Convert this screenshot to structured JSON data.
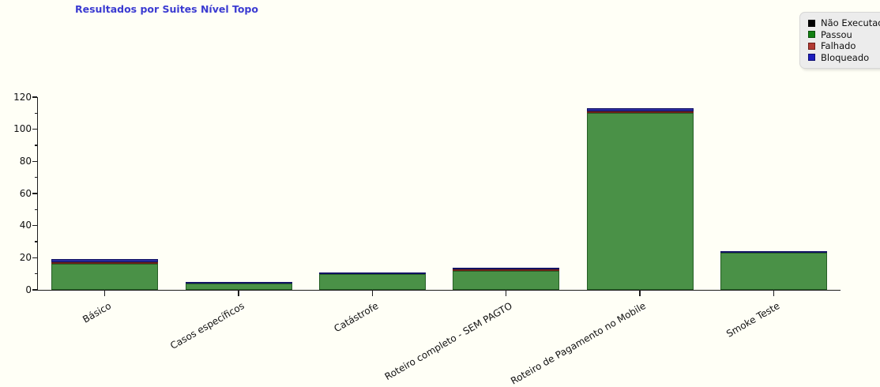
{
  "title": {
    "text": "Resultados por Suites Nível Topo",
    "color": "#3b3bd1"
  },
  "colors": {
    "background": "#fffff6",
    "legend_bg": "#ececec",
    "axis": "#1c1c1c"
  },
  "legend": {
    "items": [
      {
        "label": "Não Executado",
        "color": "#000000",
        "border": "#000000"
      },
      {
        "label": "Passou",
        "color": "#128012",
        "border": "#0a4d0a"
      },
      {
        "label": "Falhado",
        "color": "#b23a33",
        "border": "#6e1f1a"
      },
      {
        "label": "Bloqueado",
        "color": "#1d1dbe",
        "border": "#0e0e72"
      }
    ]
  },
  "chart_data": {
    "type": "bar",
    "stacked": true,
    "title": "Resultados por Suites Nível Topo",
    "xlabel": "",
    "ylabel": "",
    "grid": false,
    "legend_position": "top-right",
    "ylim": [
      0,
      120
    ],
    "y_ticks": [
      0,
      20,
      40,
      60,
      80,
      100,
      120
    ],
    "y_minor_tick_step": 10,
    "categories": [
      "Básico",
      "Casos específicos",
      "Catástrofe",
      "Roteiro completo - SEM PAGTO",
      "Roteiro de Pagamento no Mobile",
      "Smoke Teste"
    ],
    "series": [
      {
        "name": "Não Executado",
        "color": "#000000",
        "border": "#000000",
        "values": [
          0,
          0,
          0,
          0,
          0,
          0
        ]
      },
      {
        "name": "Passou",
        "color": "#4a9147",
        "border": "#265e26",
        "values": [
          16,
          4,
          10,
          12,
          110,
          23
        ]
      },
      {
        "name": "Falhado",
        "color": "#a83a2e",
        "border": "#6d2018",
        "values": [
          1,
          0,
          0,
          1,
          1,
          0
        ]
      },
      {
        "name": "Bloqueado",
        "color": "#2a2a9e",
        "border": "#121263",
        "values": [
          2,
          1,
          1,
          1,
          2,
          1
        ]
      }
    ],
    "stack_bottom_to_top": [
      "Passou",
      "Falhado",
      "Bloqueado",
      "Não Executado"
    ],
    "totals": [
      19,
      5,
      11,
      14,
      113,
      24
    ]
  }
}
